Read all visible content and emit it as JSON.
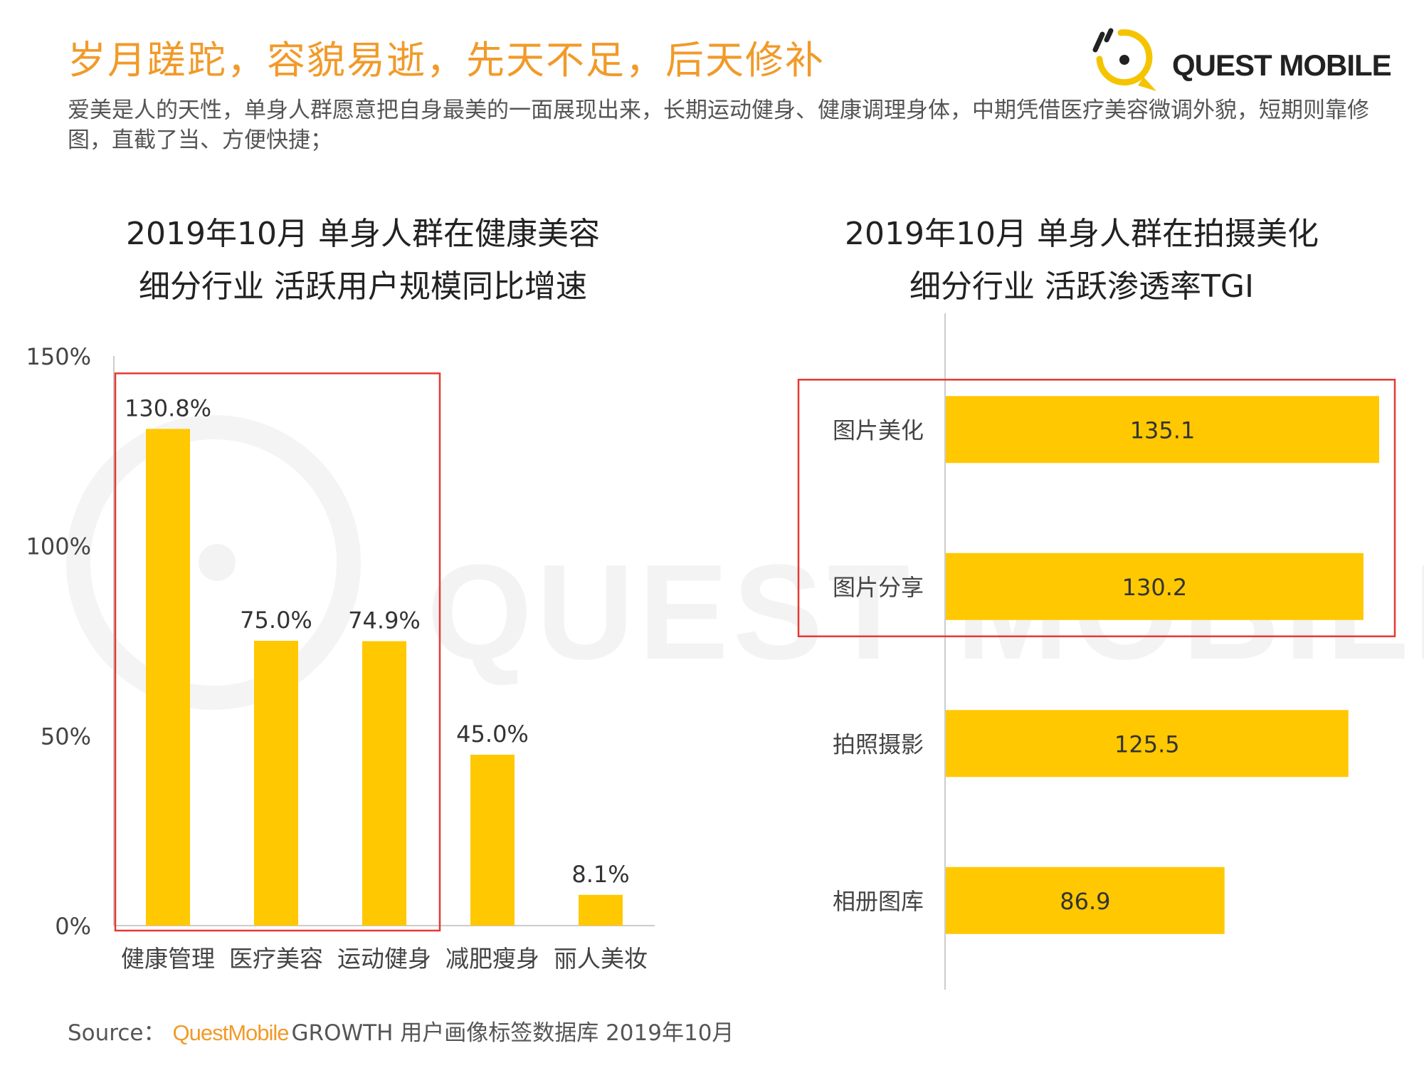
{
  "headline": "岁月蹉跎，容貌易逝，先天不足，后天修补",
  "subtitle": "爱美是人的天性，单身人群愿意把自身最美的一面展现出来，长期运动健身、健康调理身体，中期凭借医疗美容微调外貌，短期则靠修图，直截了当、方便快捷；",
  "logo": {
    "text": "QUEST MOBILE",
    "icon": "questmobile-logo-icon",
    "color": "#f5c400"
  },
  "watermark": "QUEST MOBILE",
  "source": {
    "label": "Source：",
    "brand": "QuestMobile",
    "text": "GROWTH 用户画像标签数据库 2019年10月"
  },
  "colors": {
    "bar": "#ffc800",
    "highlight_box": "#e53935",
    "headline": "#f19a29",
    "axis": "#cccccc"
  },
  "chart_data": [
    {
      "type": "bar",
      "title_line1": "2019年10月 单身人群在健康美容",
      "title_line2": "细分行业 活跃用户规模同比增速",
      "categories": [
        "健康管理",
        "医疗美容",
        "运动健身",
        "减肥瘦身",
        "丽人美妆"
      ],
      "values": [
        130.8,
        75.0,
        74.9,
        45.0,
        8.1
      ],
      "labels": [
        "130.8%",
        "75.0%",
        "74.9%",
        "45.0%",
        "8.1%"
      ],
      "unit": "%",
      "ylim": [
        0,
        150
      ],
      "yticks": [
        0,
        50,
        100,
        150
      ],
      "ytick_labels": [
        "0%",
        "50%",
        "100%",
        "150%"
      ],
      "highlighted": [
        "健康管理",
        "医疗美容",
        "运动健身"
      ],
      "grid": false
    },
    {
      "type": "bar",
      "orientation": "horizontal",
      "title_line1": "2019年10月 单身人群在拍摄美化",
      "title_line2": "细分行业 活跃渗透率TGI",
      "categories": [
        "图片美化",
        "图片分享",
        "拍照摄影",
        "相册图库"
      ],
      "values": [
        135.1,
        130.2,
        125.5,
        86.9
      ],
      "labels": [
        "135.1",
        "130.2",
        "125.5",
        "86.9"
      ],
      "highlighted": [
        "图片美化",
        "图片分享"
      ],
      "grid": false
    }
  ]
}
